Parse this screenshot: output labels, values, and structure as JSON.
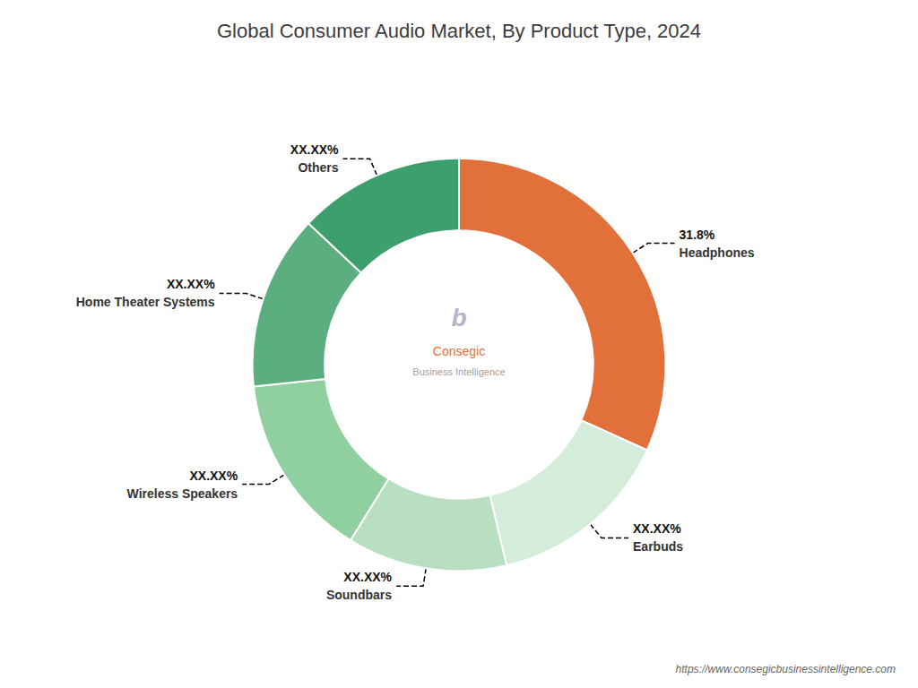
{
  "chart_data": {
    "type": "pie",
    "title": "Global Consumer Audio Market, By Product Type, 2024",
    "categories": [
      "Headphones",
      "Earbuds",
      "Soundbars",
      "Wireless Speakers",
      "Home Theater Systems",
      "Others"
    ],
    "values": [
      31.8,
      14.5,
      12.5,
      14.5,
      13.7,
      13.0
    ],
    "value_labels": [
      "31.8%",
      "XX.XX%",
      "XX.XX%",
      "XX.XX%",
      "XX.XX%",
      "XX.XX%"
    ],
    "colors": [
      "#E2703A",
      "#d4edda",
      "#b8dfc0",
      "#90cfa0",
      "#5baf7e",
      "#3d9e6e"
    ],
    "data_labels": true,
    "annotations": [
      "b",
      "Consegic",
      "Business Intelligence",
      "https://www.consegicbusinessintelligence.com"
    ]
  }
}
